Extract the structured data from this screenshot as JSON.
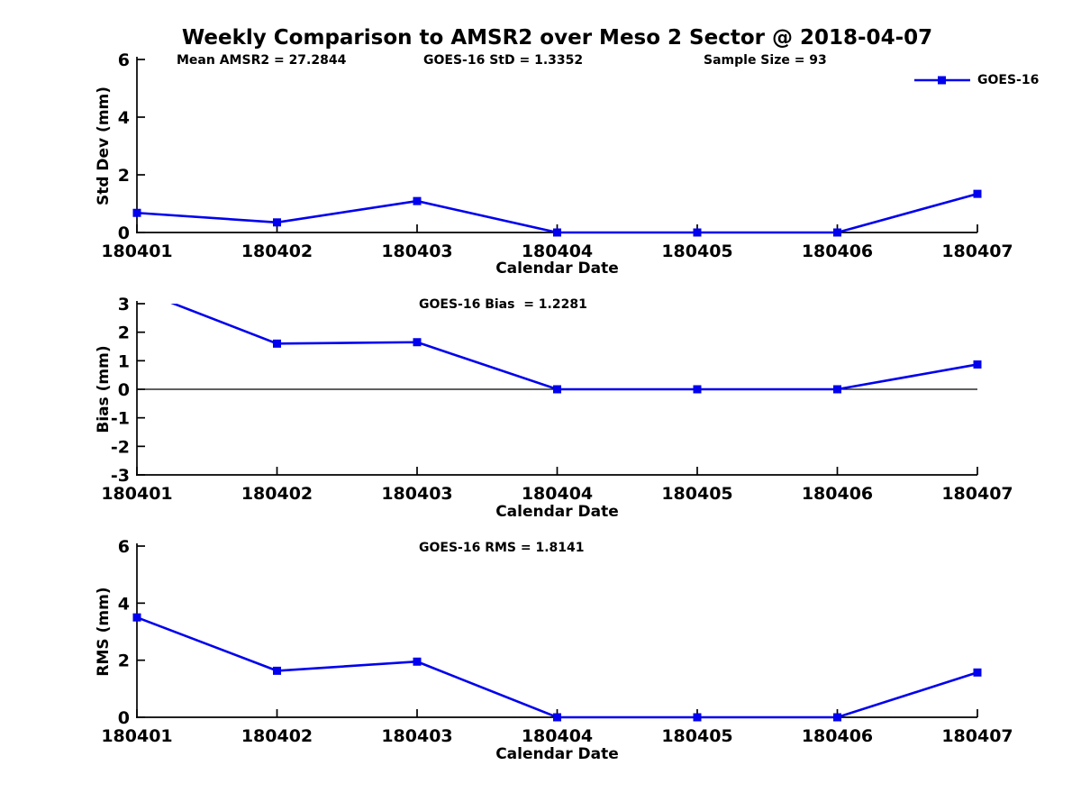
{
  "title": "Weekly Comparison to AMSR2 over Meso 2 Sector @ 2018-04-07",
  "colors": {
    "series": "#0000EE",
    "axis": "#000000",
    "text": "#000000"
  },
  "legend": {
    "label": "GOES-16"
  },
  "chart_data": [
    {
      "type": "line",
      "panel": "std-dev",
      "header_stats": [
        "Mean AMSR2 = 27.2844",
        "GOES-16 StD = 1.3352",
        "Sample Size = 93"
      ],
      "categories": [
        "180401",
        "180402",
        "180403",
        "180404",
        "180405",
        "180406",
        "180407"
      ],
      "series": [
        {
          "name": "GOES-16",
          "values": [
            0.68,
            0.35,
            1.09,
            0.0,
            0.0,
            0.0,
            1.34
          ],
          "color": "#0000EE",
          "marker": "square"
        }
      ],
      "xlabel": "Calendar Date",
      "ylabel": "Std Dev (mm)",
      "ylim": [
        0,
        6
      ],
      "yticks": [
        0,
        2,
        4,
        6
      ],
      "grid": false,
      "legend_position": "top-right"
    },
    {
      "type": "line",
      "panel": "bias",
      "annotation": "GOES-16 Bias  = 1.2281",
      "categories": [
        "180401",
        "180402",
        "180403",
        "180404",
        "180405",
        "180406",
        "180407"
      ],
      "series": [
        {
          "name": "GOES-16",
          "values": [
            3.5,
            1.6,
            1.65,
            0.0,
            0.0,
            0.0,
            0.87
          ],
          "color": "#0000EE",
          "marker": "square"
        }
      ],
      "xlabel": "Calendar Date",
      "ylabel": "Bias (mm)",
      "ylim": [
        -3,
        3
      ],
      "yticks": [
        3,
        2,
        1,
        0,
        -1,
        -2,
        -3
      ],
      "zero_line": true,
      "grid": false,
      "clip_note": "first point exceeds y-axis max and is clipped at top"
    },
    {
      "type": "line",
      "panel": "rms",
      "annotation": "GOES-16 RMS = 1.8141",
      "categories": [
        "180401",
        "180402",
        "180403",
        "180404",
        "180405",
        "180406",
        "180407"
      ],
      "series": [
        {
          "name": "GOES-16",
          "values": [
            3.5,
            1.63,
            1.95,
            0.0,
            0.0,
            0.0,
            1.57
          ],
          "color": "#0000EE",
          "marker": "square"
        }
      ],
      "xlabel": "Calendar Date",
      "ylabel": "RMS (mm)",
      "ylim": [
        0,
        6
      ],
      "yticks": [
        0,
        2,
        4,
        6
      ],
      "grid": false
    }
  ]
}
